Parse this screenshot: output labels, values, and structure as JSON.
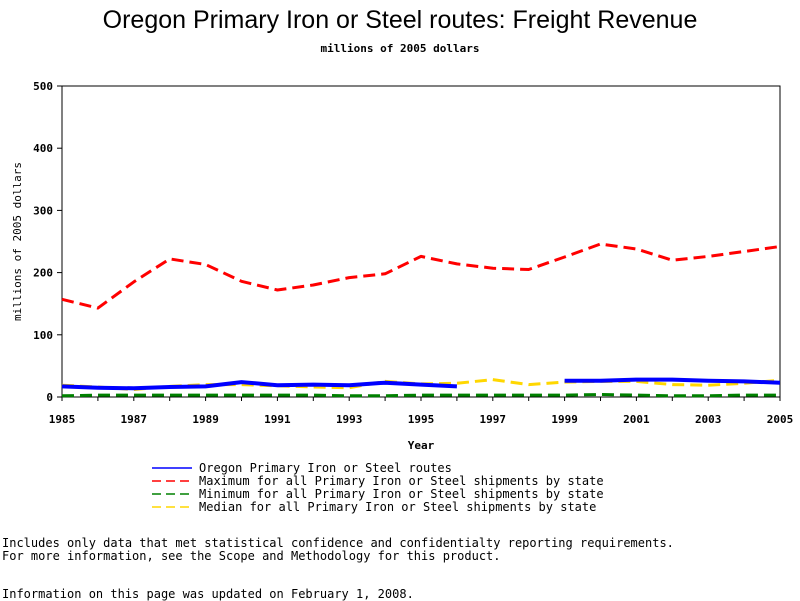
{
  "chart_data": {
    "type": "line",
    "title": "Oregon Primary Iron or Steel routes: Freight Revenue",
    "subtitle": "millions of 2005 dollars",
    "xlabel": "Year",
    "ylabel": "millions of 2005 dollars",
    "xlim": [
      1985,
      2005
    ],
    "ylim": [
      0,
      500
    ],
    "xticks": [
      1985,
      1987,
      1989,
      1991,
      1993,
      1995,
      1997,
      1999,
      2001,
      2003,
      2005
    ],
    "yticks": [
      0,
      100,
      200,
      300,
      400,
      500
    ],
    "x": [
      1985,
      1986,
      1987,
      1988,
      1989,
      1990,
      1991,
      1992,
      1993,
      1994,
      1995,
      1996,
      1997,
      1998,
      1999,
      2000,
      2001,
      2002,
      2003,
      2004,
      2005
    ],
    "series": [
      {
        "name": "Oregon Primary Iron or Steel routes",
        "color": "#0000ff",
        "style": "solid",
        "values": [
          17,
          15,
          14,
          16,
          17,
          24,
          19,
          20,
          19,
          23,
          20,
          17,
          null,
          null,
          26,
          26,
          28,
          28,
          26,
          25,
          23
        ]
      },
      {
        "name": "Maximum for all Primary Iron or Steel shipments by state",
        "color": "#ff0000",
        "style": "dashed",
        "values": [
          157,
          143,
          185,
          222,
          213,
          186,
          172,
          180,
          192,
          198,
          226,
          214,
          207,
          205,
          225,
          246,
          238,
          220,
          226,
          234,
          242
        ]
      },
      {
        "name": "Minimum for all Primary Iron or Steel shipments by state",
        "color": "#008000",
        "style": "dashed",
        "values": [
          2,
          3,
          3,
          3,
          3,
          3,
          3,
          3,
          2,
          2,
          3,
          3,
          3,
          3,
          3,
          4,
          3,
          2,
          2,
          3,
          3
        ]
      },
      {
        "name": "Median for all Primary Iron or Steel shipments by state",
        "color": "#ffd700",
        "style": "dashed",
        "values": [
          19,
          16,
          12,
          17,
          20,
          20,
          18,
          16,
          15,
          25,
          21,
          22,
          28,
          20,
          24,
          25,
          25,
          20,
          19,
          22,
          27
        ]
      }
    ]
  },
  "notes": {
    "line1": "Includes only data that met statistical confidence and confidentialty reporting requirements.",
    "line2": "For more information, see the Scope and Methodology for this product.",
    "line3": "Information on this page was updated on February 1, 2008."
  }
}
